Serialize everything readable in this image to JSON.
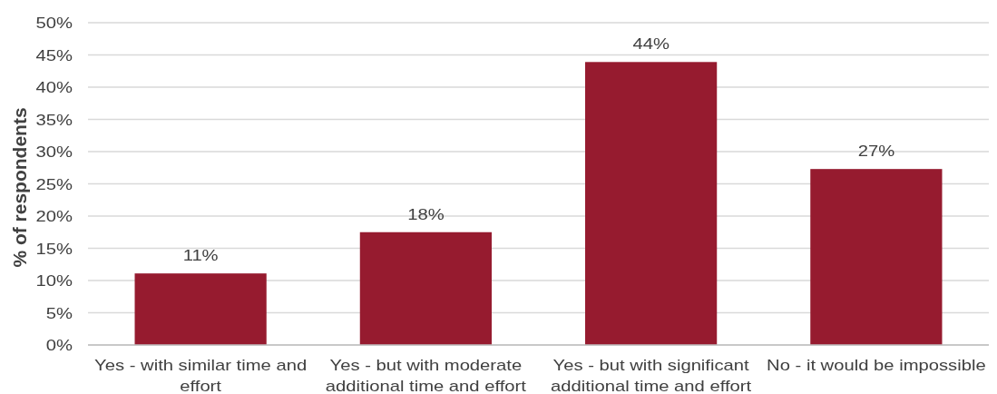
{
  "chart_data": {
    "type": "bar",
    "ylabel": "% of respondents",
    "categories": [
      "Yes - with similar time and effort",
      "Yes - but with moderate additional time and effort",
      "Yes - but with significant additional time and effort",
      "No - it would be impossible"
    ],
    "values": [
      11.1,
      17.5,
      43.9,
      27.3
    ],
    "value_labels": [
      "11%",
      "18%",
      "44%",
      "27%"
    ],
    "color": "#961b2f",
    "ylim": [
      0,
      50
    ],
    "yticks": [
      {
        "value": 0,
        "label": "0%"
      },
      {
        "value": 5,
        "label": "5%"
      },
      {
        "value": 10,
        "label": "10%"
      },
      {
        "value": 15,
        "label": "15%"
      },
      {
        "value": 20,
        "label": "20%"
      },
      {
        "value": 25,
        "label": "25%"
      },
      {
        "value": 30,
        "label": "30%"
      },
      {
        "value": 35,
        "label": "35%"
      },
      {
        "value": 40,
        "label": "40%"
      },
      {
        "value": 45,
        "label": "45%"
      },
      {
        "value": 50,
        "label": "50%"
      }
    ],
    "grid": "y"
  }
}
